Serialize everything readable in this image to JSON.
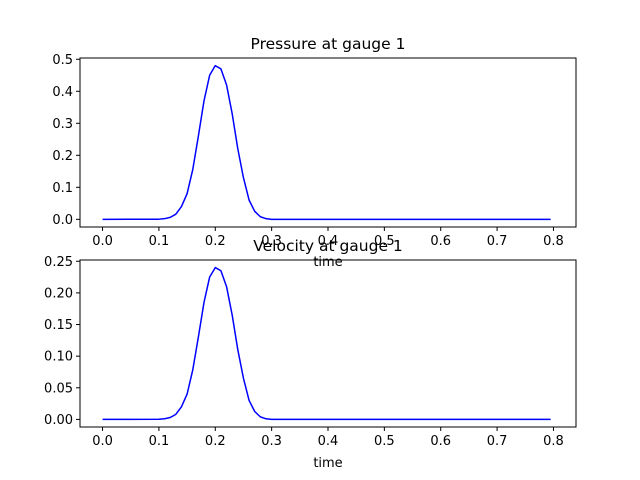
{
  "chart_data": [
    {
      "type": "line",
      "title": "Pressure at gauge 1",
      "xlabel": "time",
      "ylabel": "",
      "xlim": [
        -0.04,
        0.84
      ],
      "ylim": [
        -0.024,
        0.504
      ],
      "xticks": [
        "0.0",
        "0.1",
        "0.2",
        "0.3",
        "0.4",
        "0.5",
        "0.6",
        "0.7",
        "0.8"
      ],
      "yticks": [
        "0.0",
        "0.1",
        "0.2",
        "0.3",
        "0.4",
        "0.5"
      ],
      "grid": false,
      "color": "#0000ff",
      "x": [
        0.0,
        0.1,
        0.11,
        0.12,
        0.13,
        0.14,
        0.15,
        0.16,
        0.17,
        0.18,
        0.19,
        0.2,
        0.21,
        0.22,
        0.23,
        0.24,
        0.25,
        0.26,
        0.27,
        0.28,
        0.29,
        0.3,
        0.4,
        0.5,
        0.6,
        0.7,
        0.795
      ],
      "y": [
        0.0,
        0.0004,
        0.002,
        0.006,
        0.016,
        0.04,
        0.08,
        0.155,
        0.26,
        0.37,
        0.45,
        0.48,
        0.47,
        0.42,
        0.33,
        0.22,
        0.13,
        0.06,
        0.025,
        0.008,
        0.002,
        0.0,
        0.0,
        0.0,
        0.0,
        0.0,
        0.0
      ]
    },
    {
      "type": "line",
      "title": "Velocity at gauge 1",
      "xlabel": "time",
      "ylabel": "",
      "xlim": [
        -0.04,
        0.84
      ],
      "ylim": [
        -0.012,
        0.252
      ],
      "xticks": [
        "0.0",
        "0.1",
        "0.2",
        "0.3",
        "0.4",
        "0.5",
        "0.6",
        "0.7",
        "0.8"
      ],
      "yticks": [
        "0.00",
        "0.05",
        "0.10",
        "0.15",
        "0.20",
        "0.25"
      ],
      "grid": false,
      "color": "#0000ff",
      "x": [
        0.0,
        0.1,
        0.11,
        0.12,
        0.13,
        0.14,
        0.15,
        0.16,
        0.17,
        0.18,
        0.19,
        0.2,
        0.21,
        0.22,
        0.23,
        0.24,
        0.25,
        0.26,
        0.27,
        0.28,
        0.29,
        0.3,
        0.4,
        0.5,
        0.6,
        0.7,
        0.795
      ],
      "y": [
        0.0,
        0.0002,
        0.001,
        0.003,
        0.008,
        0.02,
        0.04,
        0.078,
        0.13,
        0.185,
        0.225,
        0.24,
        0.235,
        0.21,
        0.165,
        0.11,
        0.065,
        0.03,
        0.0125,
        0.004,
        0.001,
        0.0,
        0.0,
        0.0,
        0.0,
        0.0,
        0.0
      ]
    }
  ]
}
